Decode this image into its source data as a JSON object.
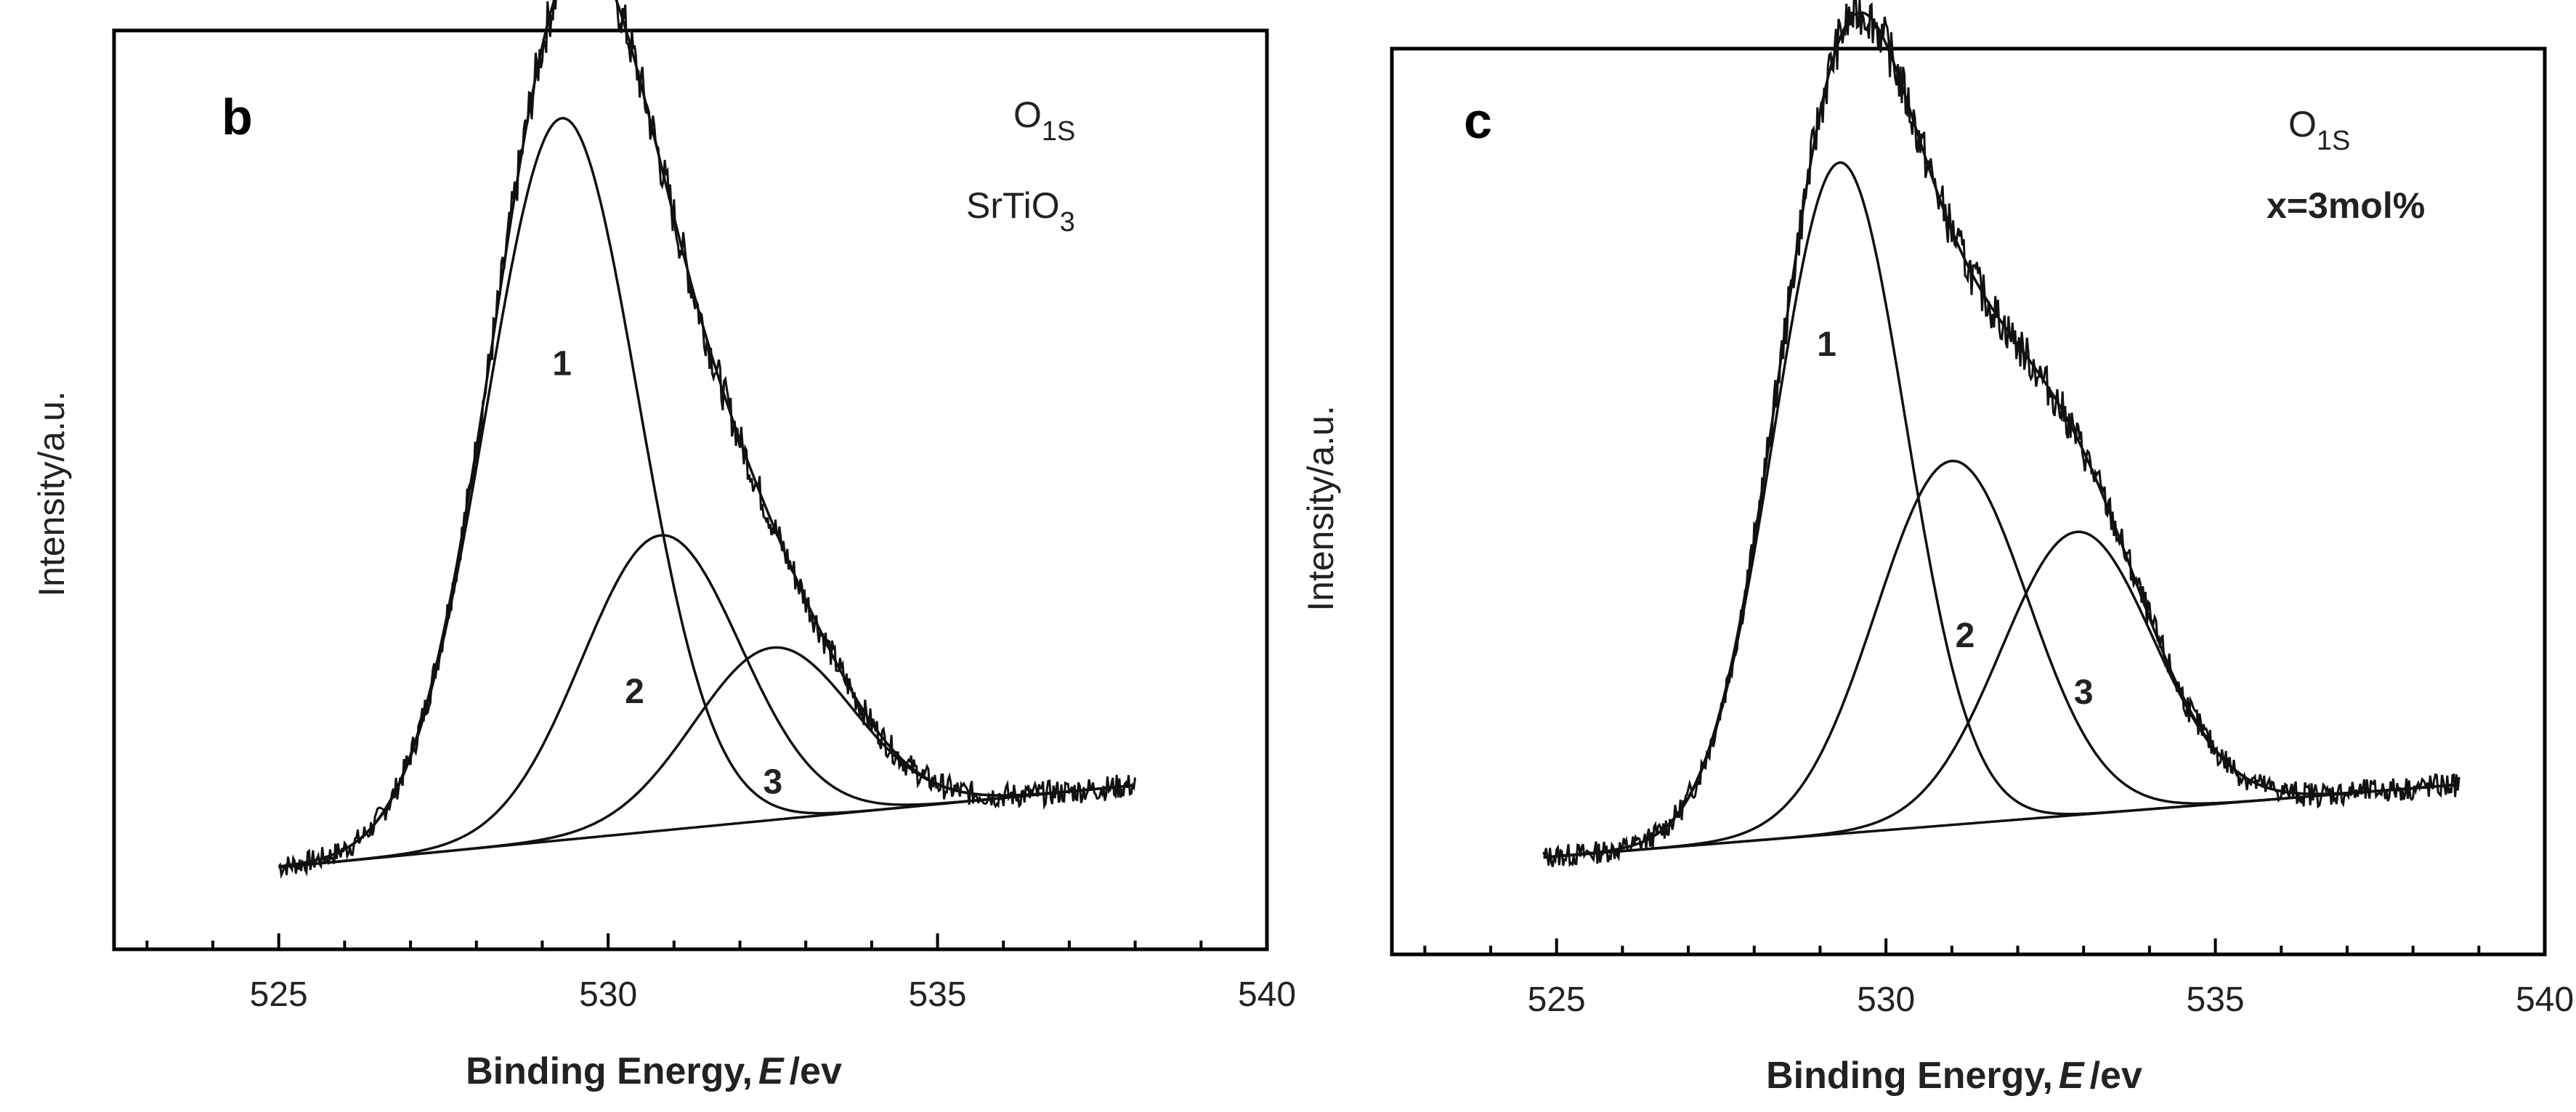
{
  "chart_data": [
    {
      "type": "line",
      "panel_label": "b",
      "title_line1": "O",
      "title_line1_sub": "1S",
      "title_line2": "SrTiO",
      "title_line2_sub": "3",
      "xlabel_prefix": "Binding Energy,",
      "xlabel_var": "E",
      "xlabel_suffix": "/ev",
      "ylabel": "Intensity/a.u.",
      "xlim": [
        522.5,
        540
      ],
      "xticks": [
        525,
        530,
        535,
        540
      ],
      "xtick_labels": [
        "525",
        "530",
        "535",
        "540"
      ],
      "ylim": [
        0,
        1.12
      ],
      "yticks_shown": false,
      "x_start": 525,
      "x_end": 538,
      "baseline": {
        "x": [
          525,
          538
        ],
        "y": [
          0.1,
          0.2
        ]
      },
      "components": [
        {
          "name": "1",
          "center": 529.3,
          "height": 0.88,
          "sigma": 1.15
        },
        {
          "name": "2",
          "center": 530.8,
          "height": 0.36,
          "sigma": 1.2
        },
        {
          "name": "3",
          "center": 532.5,
          "height": 0.21,
          "sigma": 1.2
        }
      ],
      "peak_labels": [
        {
          "text": "1",
          "x": 529.3,
          "y": 0.7
        },
        {
          "text": "2",
          "x": 530.4,
          "y": 0.3
        },
        {
          "text": "3",
          "x": 532.5,
          "y": 0.19
        }
      ],
      "noise_seed": 7
    },
    {
      "type": "line",
      "panel_label": "c",
      "title_line1": "O",
      "title_line1_sub": "1S",
      "title_line2": "x=3mol%",
      "title_line2_sub": "",
      "xlabel_prefix": "Binding Energy,",
      "xlabel_var": "E",
      "xlabel_suffix": "/ev",
      "ylabel": "Intensity/a.u.",
      "xlim": [
        522.5,
        540
      ],
      "xticks": [
        525,
        530,
        535,
        540
      ],
      "xtick_labels": [
        "525",
        "530",
        "535",
        "540"
      ],
      "ylim": [
        0,
        1.12
      ],
      "yticks_shown": false,
      "x_start": 524.8,
      "x_end": 538.7,
      "baseline": {
        "x": [
          524.8,
          538.7
        ],
        "y": [
          0.12,
          0.21
        ]
      },
      "components": [
        {
          "name": "1",
          "center": 529.3,
          "height": 0.83,
          "sigma": 1.0
        },
        {
          "name": "2",
          "center": 531.0,
          "height": 0.45,
          "sigma": 1.15
        },
        {
          "name": "3",
          "center": 532.9,
          "height": 0.35,
          "sigma": 1.15
        }
      ],
      "peak_labels": [
        {
          "text": "1",
          "x": 529.1,
          "y": 0.74
        },
        {
          "text": "2",
          "x": 531.2,
          "y": 0.38
        },
        {
          "text": "3",
          "x": 533.0,
          "y": 0.31
        }
      ],
      "noise_seed": 13
    }
  ]
}
